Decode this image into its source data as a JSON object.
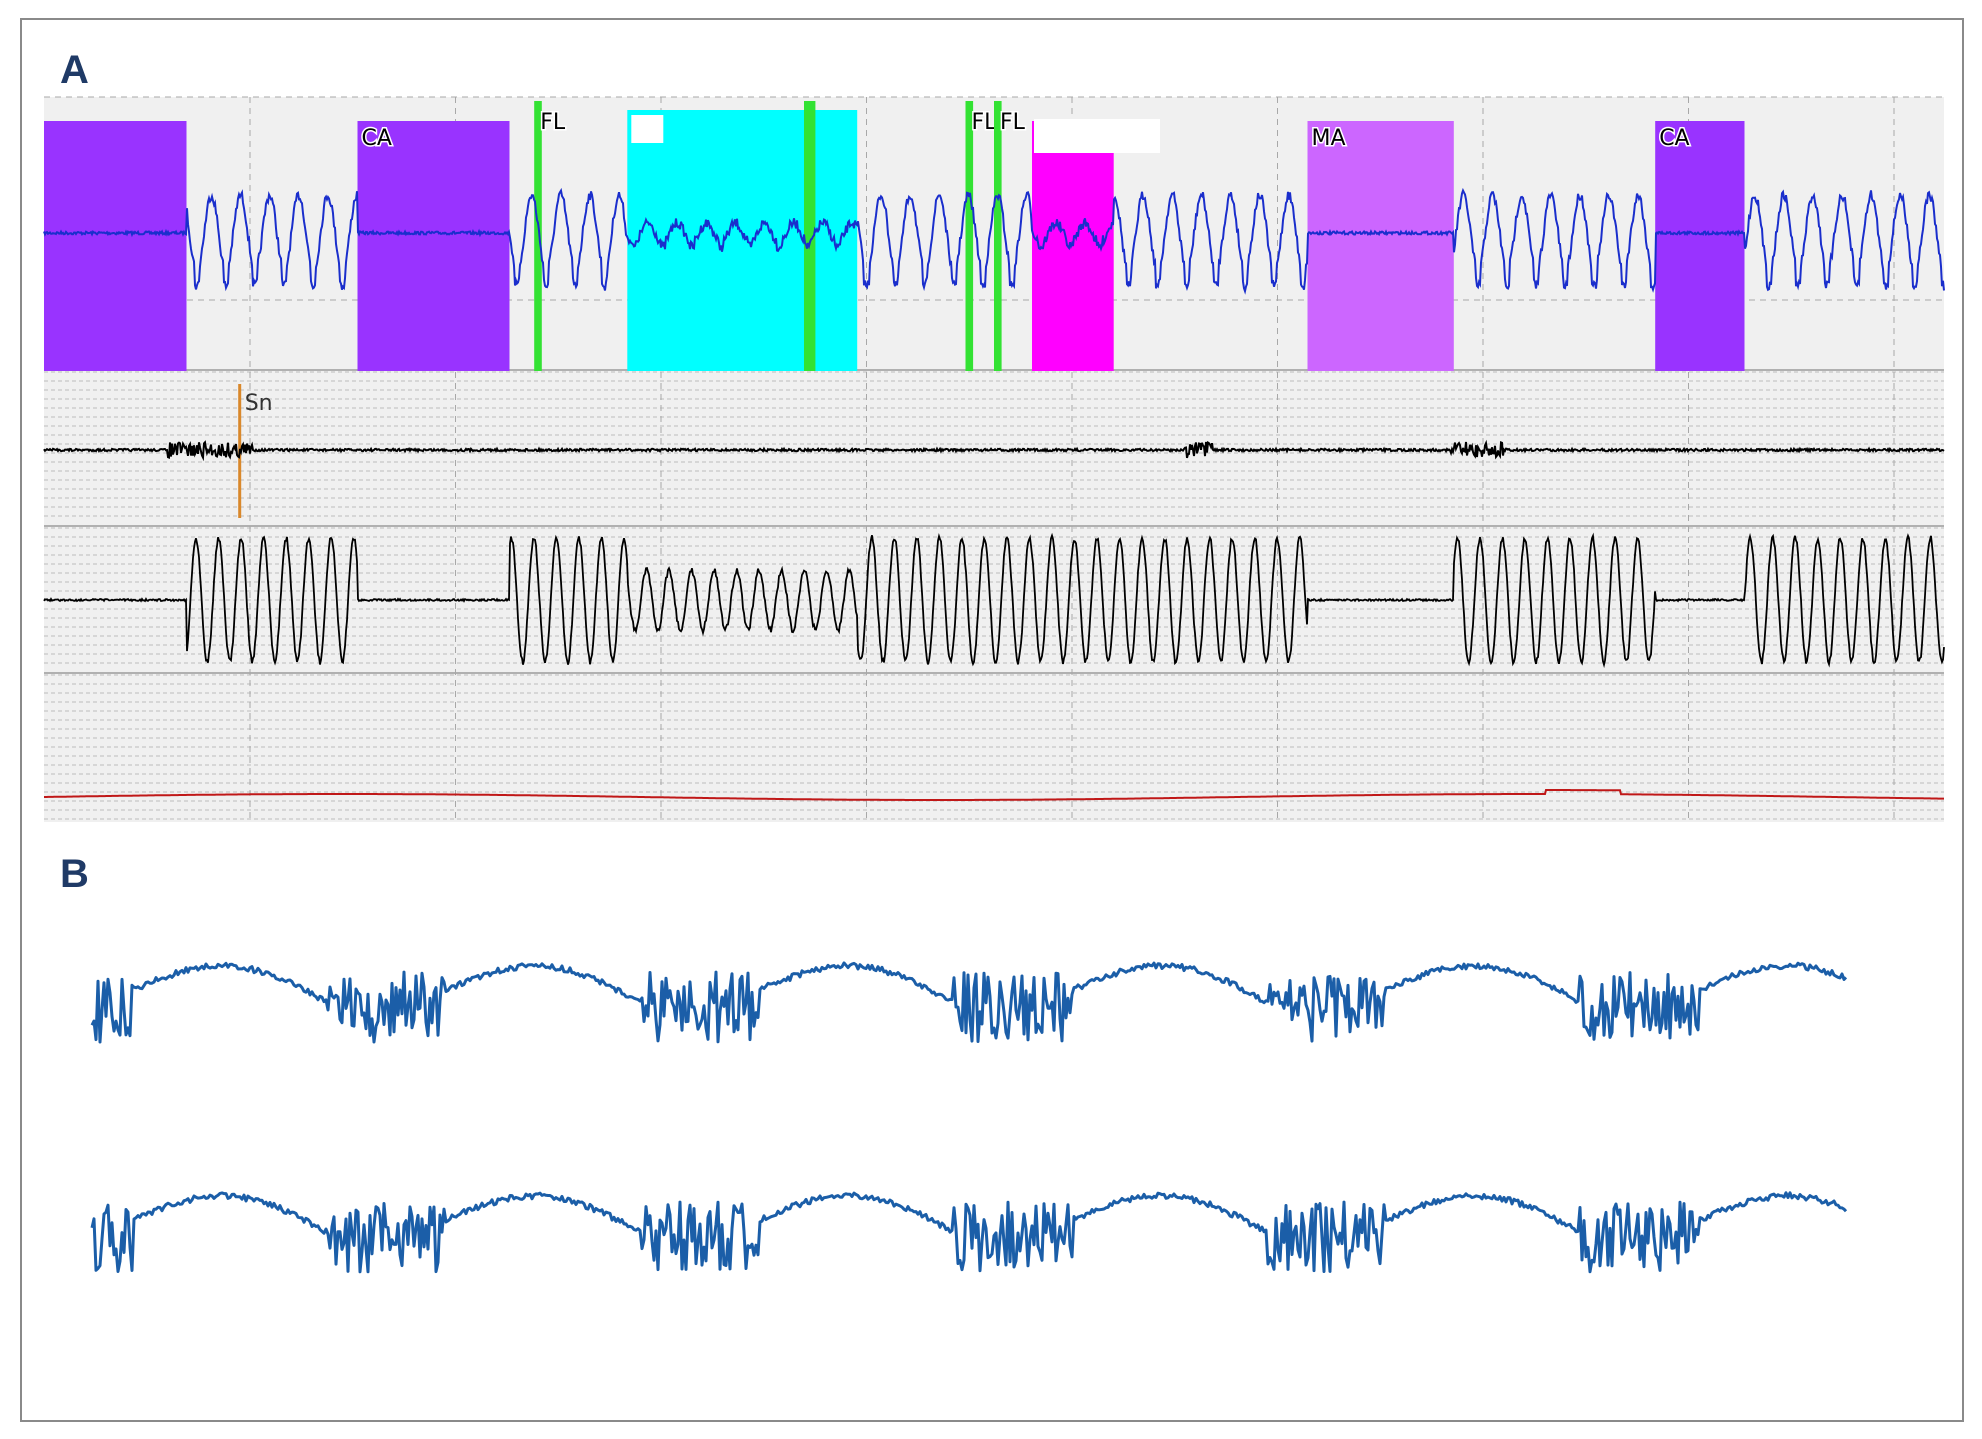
{
  "panels": {
    "a": {
      "letter": "A"
    },
    "b": {
      "letter": "B"
    }
  },
  "colors": {
    "border": "#8a8a8a",
    "plot_bg": "#f0f0f0",
    "grid": "#a8a8a8",
    "airflow_trace": "#1a2ecc",
    "snore_trace": "#000000",
    "effort_trace": "#000000",
    "spo2_trace": "#c01818",
    "snore_marker": "#d9882b",
    "flow_limitation_marker": "#33e233",
    "central_apnea": "#9933ff",
    "mixed_apnea": "#cc66ff",
    "hypopnea_cyan": "#00ffff",
    "event_magenta": "#ff00ff",
    "panel_b_trace": "#1b5ea8"
  },
  "events": [
    {
      "label": "",
      "kind": "central_apnea",
      "start": 0.0,
      "end": 7.5
    },
    {
      "label": "CA",
      "kind": "central_apnea",
      "start": 16.5,
      "end": 24.5
    },
    {
      "label": "FL",
      "kind": "flow_limitation",
      "start": 25.8,
      "end": 26.2
    },
    {
      "label": "",
      "kind": "hypopnea_cyan",
      "start": 30.7,
      "end": 42.8
    },
    {
      "label": "",
      "kind": "flow_limitation",
      "start": 40.0,
      "end": 40.6
    },
    {
      "label": "FL",
      "kind": "flow_limitation",
      "start": 48.5,
      "end": 48.9
    },
    {
      "label": "FL",
      "kind": "flow_limitation",
      "start": 50.0,
      "end": 50.4
    },
    {
      "label": "",
      "kind": "event_magenta",
      "start": 52.0,
      "end": 56.3
    },
    {
      "label": "MA",
      "kind": "mixed_apnea",
      "start": 66.5,
      "end": 74.2
    },
    {
      "label": "CA",
      "kind": "central_apnea",
      "start": 84.8,
      "end": 89.5
    }
  ],
  "snore_marker": {
    "label": "Sn",
    "time": 10.3
  }
}
